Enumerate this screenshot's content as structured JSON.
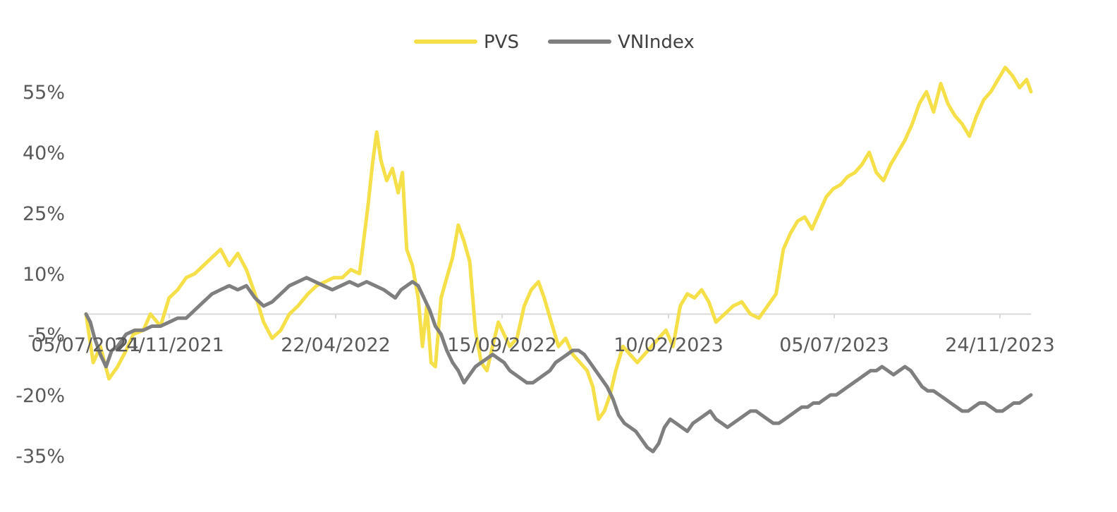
{
  "chart_data": {
    "type": "line",
    "title": "",
    "xlabel": "",
    "ylabel": "",
    "x_tick_labels": [
      "05/07/2021",
      "24/11/2021",
      "22/04/2022",
      "15/09/2022",
      "10/02/2023",
      "05/07/2023",
      "24/11/2023"
    ],
    "y_tick_labels": [
      "55%",
      "40%",
      "25%",
      "10%",
      "-5%",
      "-20%",
      "-35%"
    ],
    "y_ticks": [
      55,
      40,
      25,
      10,
      -5,
      -20,
      -35
    ],
    "ylim": [
      -35,
      60
    ],
    "zero_line": true,
    "grid": false,
    "legend_position": "top-center",
    "colors": {
      "PVS": "#F5E04A",
      "VNIndex": "#7F7F7F",
      "axis": "#D9D9D9"
    },
    "series": [
      {
        "name": "PVS",
        "values": [
          [
            0,
            0
          ],
          [
            5,
            -12
          ],
          [
            10,
            -8
          ],
          [
            16,
            -16
          ],
          [
            22,
            -13
          ],
          [
            28,
            -9
          ],
          [
            33,
            -5
          ],
          [
            40,
            -4
          ],
          [
            45,
            0
          ],
          [
            52,
            -3
          ],
          [
            58,
            4
          ],
          [
            64,
            6
          ],
          [
            70,
            9
          ],
          [
            76,
            10
          ],
          [
            82,
            12
          ],
          [
            88,
            14
          ],
          [
            94,
            16
          ],
          [
            100,
            12
          ],
          [
            106,
            15
          ],
          [
            112,
            11
          ],
          [
            118,
            5
          ],
          [
            124,
            -2
          ],
          [
            130,
            -6
          ],
          [
            136,
            -4
          ],
          [
            142,
            0
          ],
          [
            148,
            2
          ],
          [
            155,
            5
          ],
          [
            161,
            7
          ],
          [
            167,
            8
          ],
          [
            173,
            9
          ],
          [
            179,
            9
          ],
          [
            185,
            11
          ],
          [
            191,
            10
          ],
          [
            197,
            27
          ],
          [
            200,
            37
          ],
          [
            203,
            45
          ],
          [
            206,
            38
          ],
          [
            210,
            33
          ],
          [
            214,
            36
          ],
          [
            218,
            30
          ],
          [
            221,
            35
          ],
          [
            224,
            16
          ],
          [
            228,
            12
          ],
          [
            232,
            4
          ],
          [
            235,
            -8
          ],
          [
            238,
            2
          ],
          [
            241,
            -12
          ],
          [
            244,
            -13
          ],
          [
            248,
            4
          ],
          [
            252,
            9
          ],
          [
            256,
            14
          ],
          [
            260,
            22
          ],
          [
            264,
            18
          ],
          [
            268,
            13
          ],
          [
            272,
            -4
          ],
          [
            276,
            -12
          ],
          [
            280,
            -14
          ],
          [
            284,
            -8
          ],
          [
            288,
            -2
          ],
          [
            292,
            -5
          ],
          [
            296,
            -8
          ],
          [
            301,
            -6
          ],
          [
            306,
            2
          ],
          [
            311,
            6
          ],
          [
            316,
            8
          ],
          [
            320,
            4
          ],
          [
            325,
            -2
          ],
          [
            330,
            -8
          ],
          [
            335,
            -6
          ],
          [
            340,
            -10
          ],
          [
            345,
            -12
          ],
          [
            350,
            -14
          ],
          [
            354,
            -18
          ],
          [
            358,
            -26
          ],
          [
            362,
            -24
          ],
          [
            366,
            -20
          ],
          [
            370,
            -14
          ],
          [
            375,
            -8
          ],
          [
            380,
            -10
          ],
          [
            385,
            -12
          ],
          [
            390,
            -10
          ],
          [
            395,
            -8
          ],
          [
            400,
            -6
          ],
          [
            405,
            -4
          ],
          [
            410,
            -8
          ],
          [
            415,
            2
          ],
          [
            420,
            5
          ],
          [
            425,
            4
          ],
          [
            430,
            6
          ],
          [
            435,
            3
          ],
          [
            440,
            -2
          ],
          [
            446,
            0
          ],
          [
            452,
            2
          ],
          [
            458,
            3
          ],
          [
            464,
            0
          ],
          [
            470,
            -1
          ],
          [
            476,
            2
          ],
          [
            482,
            5
          ],
          [
            487,
            16
          ],
          [
            492,
            20
          ],
          [
            497,
            23
          ],
          [
            502,
            24
          ],
          [
            507,
            21
          ],
          [
            512,
            25
          ],
          [
            517,
            29
          ],
          [
            522,
            31
          ],
          [
            527,
            32
          ],
          [
            532,
            34
          ],
          [
            537,
            35
          ],
          [
            542,
            37
          ],
          [
            547,
            40
          ],
          [
            552,
            35
          ],
          [
            557,
            33
          ],
          [
            562,
            37
          ],
          [
            567,
            40
          ],
          [
            572,
            43
          ],
          [
            577,
            47
          ],
          [
            582,
            52
          ],
          [
            587,
            55
          ],
          [
            592,
            50
          ],
          [
            597,
            57
          ],
          [
            602,
            52
          ],
          [
            607,
            49
          ],
          [
            612,
            47
          ],
          [
            617,
            44
          ],
          [
            622,
            49
          ],
          [
            627,
            53
          ],
          [
            632,
            55
          ],
          [
            637,
            58
          ],
          [
            642,
            61
          ],
          [
            647,
            59
          ],
          [
            652,
            56
          ],
          [
            657,
            58
          ],
          [
            660,
            55
          ]
        ]
      },
      {
        "name": "VNIndex",
        "values": [
          [
            0,
            0
          ],
          [
            3,
            -2
          ],
          [
            6,
            -6
          ],
          [
            10,
            -10
          ],
          [
            14,
            -13
          ],
          [
            18,
            -9
          ],
          [
            22,
            -8
          ],
          [
            28,
            -5
          ],
          [
            34,
            -4
          ],
          [
            40,
            -4
          ],
          [
            46,
            -3
          ],
          [
            52,
            -3
          ],
          [
            58,
            -2
          ],
          [
            64,
            -1
          ],
          [
            70,
            -1
          ],
          [
            76,
            1
          ],
          [
            82,
            3
          ],
          [
            88,
            5
          ],
          [
            94,
            6
          ],
          [
            100,
            7
          ],
          [
            106,
            6
          ],
          [
            112,
            7
          ],
          [
            118,
            4
          ],
          [
            124,
            2
          ],
          [
            130,
            3
          ],
          [
            136,
            5
          ],
          [
            142,
            7
          ],
          [
            148,
            8
          ],
          [
            154,
            9
          ],
          [
            160,
            8
          ],
          [
            166,
            7
          ],
          [
            172,
            6
          ],
          [
            178,
            7
          ],
          [
            184,
            8
          ],
          [
            190,
            7
          ],
          [
            196,
            8
          ],
          [
            202,
            7
          ],
          [
            208,
            6
          ],
          [
            212,
            5
          ],
          [
            216,
            4
          ],
          [
            220,
            6
          ],
          [
            224,
            7
          ],
          [
            228,
            8
          ],
          [
            232,
            7
          ],
          [
            236,
            4
          ],
          [
            240,
            1
          ],
          [
            244,
            -3
          ],
          [
            248,
            -5
          ],
          [
            252,
            -9
          ],
          [
            256,
            -12
          ],
          [
            260,
            -14
          ],
          [
            264,
            -17
          ],
          [
            268,
            -15
          ],
          [
            272,
            -13
          ],
          [
            276,
            -12
          ],
          [
            280,
            -11
          ],
          [
            284,
            -10
          ],
          [
            288,
            -11
          ],
          [
            292,
            -12
          ],
          [
            296,
            -14
          ],
          [
            300,
            -15
          ],
          [
            304,
            -16
          ],
          [
            308,
            -17
          ],
          [
            312,
            -17
          ],
          [
            316,
            -16
          ],
          [
            320,
            -15
          ],
          [
            324,
            -14
          ],
          [
            328,
            -12
          ],
          [
            332,
            -11
          ],
          [
            336,
            -10
          ],
          [
            340,
            -9
          ],
          [
            344,
            -9
          ],
          [
            348,
            -10
          ],
          [
            352,
            -12
          ],
          [
            356,
            -14
          ],
          [
            360,
            -16
          ],
          [
            364,
            -18
          ],
          [
            368,
            -21
          ],
          [
            372,
            -25
          ],
          [
            376,
            -27
          ],
          [
            380,
            -28
          ],
          [
            384,
            -29
          ],
          [
            388,
            -31
          ],
          [
            392,
            -33
          ],
          [
            396,
            -34
          ],
          [
            400,
            -32
          ],
          [
            404,
            -28
          ],
          [
            408,
            -26
          ],
          [
            412,
            -27
          ],
          [
            416,
            -28
          ],
          [
            420,
            -29
          ],
          [
            424,
            -27
          ],
          [
            428,
            -26
          ],
          [
            432,
            -25
          ],
          [
            436,
            -24
          ],
          [
            440,
            -26
          ],
          [
            444,
            -27
          ],
          [
            448,
            -28
          ],
          [
            452,
            -27
          ],
          [
            456,
            -26
          ],
          [
            460,
            -25
          ],
          [
            464,
            -24
          ],
          [
            468,
            -24
          ],
          [
            472,
            -25
          ],
          [
            476,
            -26
          ],
          [
            480,
            -27
          ],
          [
            484,
            -27
          ],
          [
            488,
            -26
          ],
          [
            492,
            -25
          ],
          [
            496,
            -24
          ],
          [
            500,
            -23
          ],
          [
            504,
            -23
          ],
          [
            508,
            -22
          ],
          [
            512,
            -22
          ],
          [
            516,
            -21
          ],
          [
            520,
            -20
          ],
          [
            524,
            -20
          ],
          [
            528,
            -19
          ],
          [
            532,
            -18
          ],
          [
            536,
            -17
          ],
          [
            540,
            -16
          ],
          [
            544,
            -15
          ],
          [
            548,
            -14
          ],
          [
            552,
            -14
          ],
          [
            556,
            -13
          ],
          [
            560,
            -14
          ],
          [
            564,
            -15
          ],
          [
            568,
            -14
          ],
          [
            572,
            -13
          ],
          [
            576,
            -14
          ],
          [
            580,
            -16
          ],
          [
            584,
            -18
          ],
          [
            588,
            -19
          ],
          [
            592,
            -19
          ],
          [
            596,
            -20
          ],
          [
            600,
            -21
          ],
          [
            604,
            -22
          ],
          [
            608,
            -23
          ],
          [
            612,
            -24
          ],
          [
            616,
            -24
          ],
          [
            620,
            -23
          ],
          [
            624,
            -22
          ],
          [
            628,
            -22
          ],
          [
            632,
            -23
          ],
          [
            636,
            -24
          ],
          [
            640,
            -24
          ],
          [
            644,
            -23
          ],
          [
            648,
            -22
          ],
          [
            652,
            -22
          ],
          [
            656,
            -21
          ],
          [
            660,
            -20
          ]
        ]
      }
    ]
  }
}
